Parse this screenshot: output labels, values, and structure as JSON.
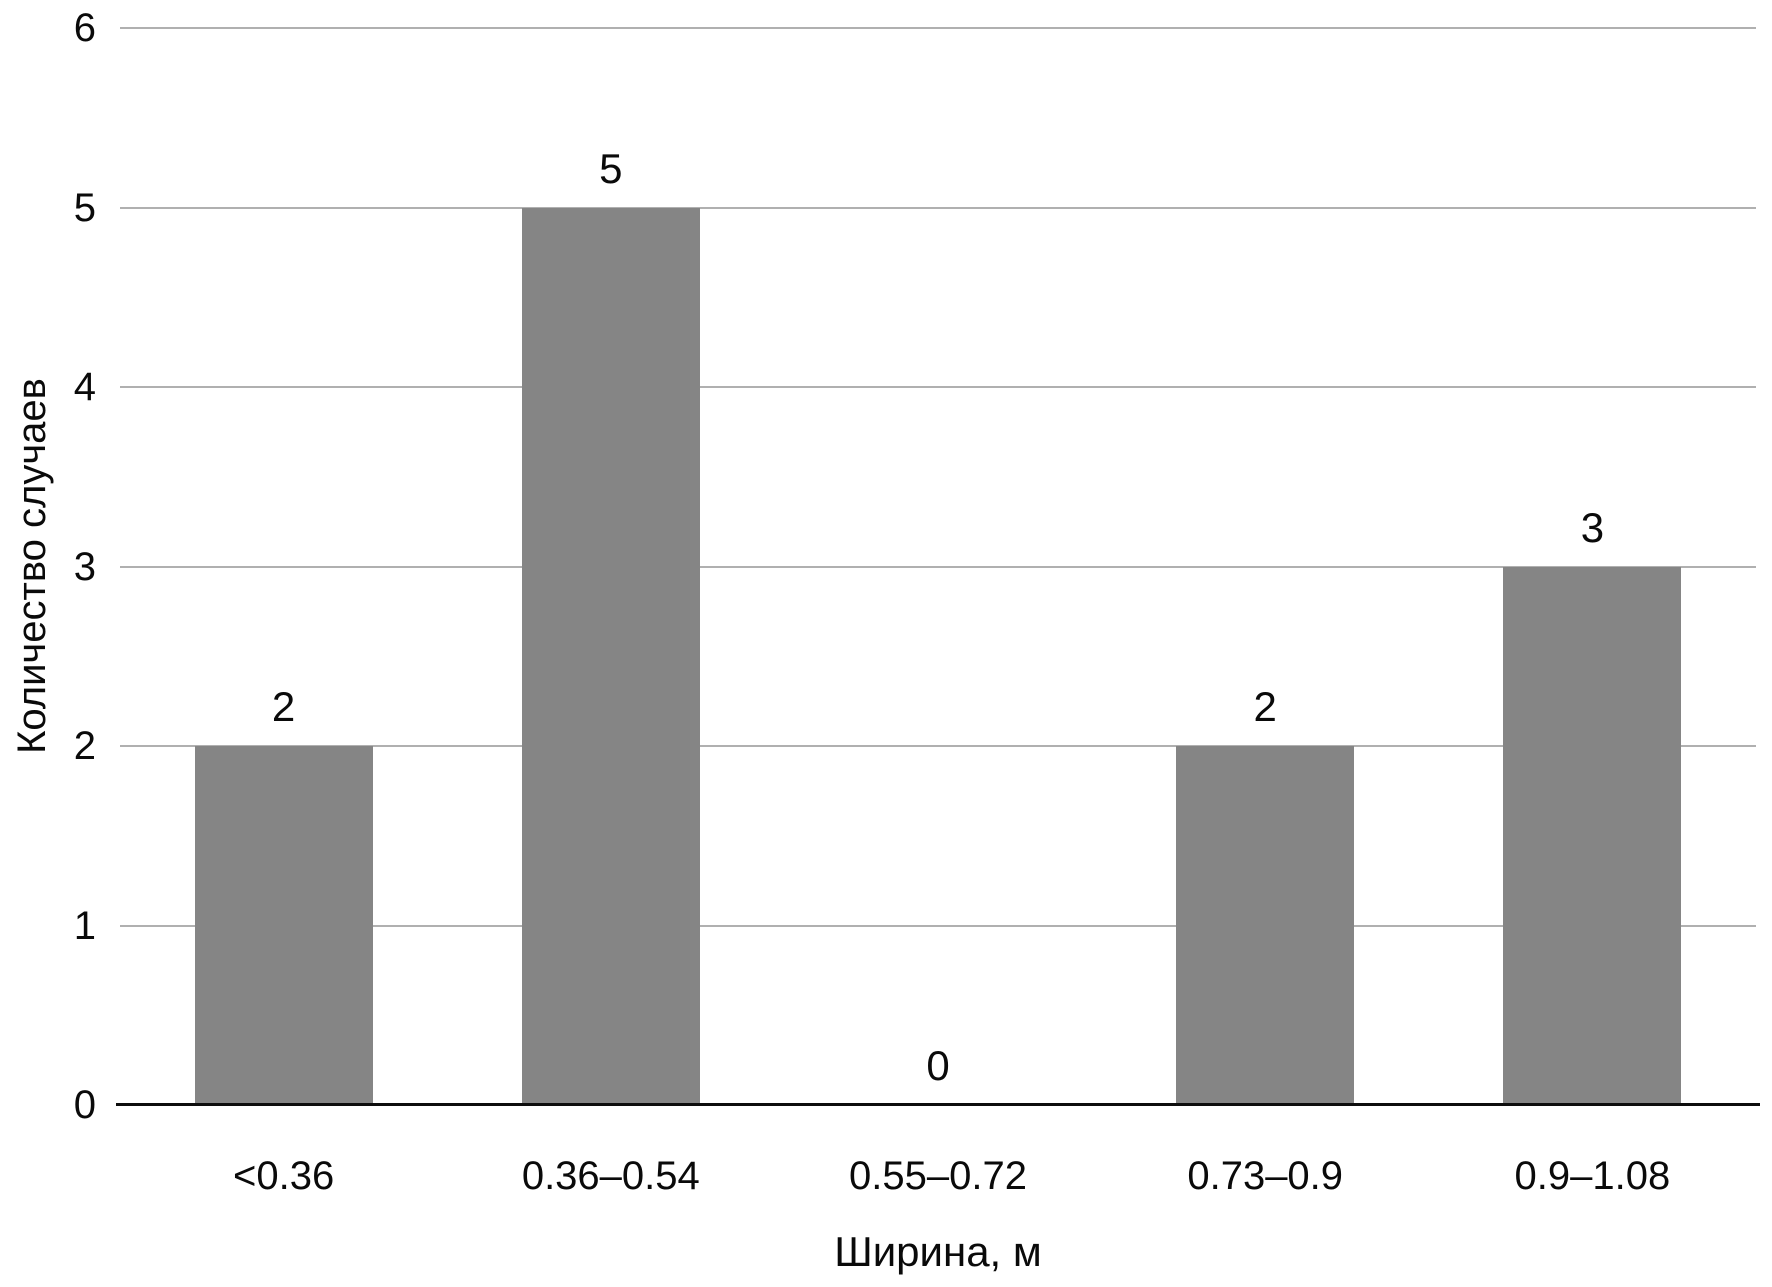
{
  "chart_data": {
    "type": "bar",
    "title": "",
    "categories": [
      "<0.36",
      "0.36–0.54",
      "0.55–0.72",
      "0.73–0.9",
      "0.9–1.08"
    ],
    "values": [
      2,
      5,
      0,
      2,
      3
    ],
    "data_labels": [
      "2",
      "5",
      "0",
      "2",
      "3"
    ],
    "xlabel": "Ширина, м",
    "ylabel": "Количество случаев",
    "ylim": [
      0,
      6
    ],
    "yticks": [
      0,
      1,
      2,
      3,
      4,
      5,
      6
    ],
    "grid": true,
    "legend": false,
    "colors": {
      "bar_fill": "#858585",
      "gridline": "#b0b0b0",
      "axis_line": "#0d0d0d",
      "text": "#0a0a0a",
      "background": "#ffffff"
    }
  }
}
